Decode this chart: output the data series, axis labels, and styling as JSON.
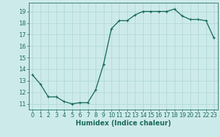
{
  "x": [
    0,
    1,
    2,
    3,
    4,
    5,
    6,
    7,
    8,
    9,
    10,
    11,
    12,
    13,
    14,
    15,
    16,
    17,
    18,
    19,
    20,
    21,
    22,
    23
  ],
  "y": [
    13.5,
    12.7,
    11.6,
    11.6,
    11.2,
    11.0,
    11.1,
    11.1,
    12.2,
    14.4,
    17.5,
    18.2,
    18.2,
    18.7,
    19.0,
    19.0,
    19.0,
    19.0,
    19.2,
    18.6,
    18.3,
    18.3,
    18.2,
    16.7
  ],
  "line_color": "#1a6b5a",
  "marker": "+",
  "marker_size": 3,
  "bg_color": "#cdeaea",
  "grid_color": "#b0d8d8",
  "xlabel": "Humidex (Indice chaleur)",
  "xlim": [
    -0.5,
    23.5
  ],
  "ylim": [
    10.5,
    19.75
  ],
  "xticks": [
    0,
    1,
    2,
    3,
    4,
    5,
    6,
    7,
    8,
    9,
    10,
    11,
    12,
    13,
    14,
    15,
    16,
    17,
    18,
    19,
    20,
    21,
    22,
    23
  ],
  "yticks": [
    11,
    12,
    13,
    14,
    15,
    16,
    17,
    18,
    19
  ],
  "xlabel_fontsize": 7,
  "tick_fontsize": 6,
  "line_width": 1.0,
  "marker_edge_width": 0.8
}
